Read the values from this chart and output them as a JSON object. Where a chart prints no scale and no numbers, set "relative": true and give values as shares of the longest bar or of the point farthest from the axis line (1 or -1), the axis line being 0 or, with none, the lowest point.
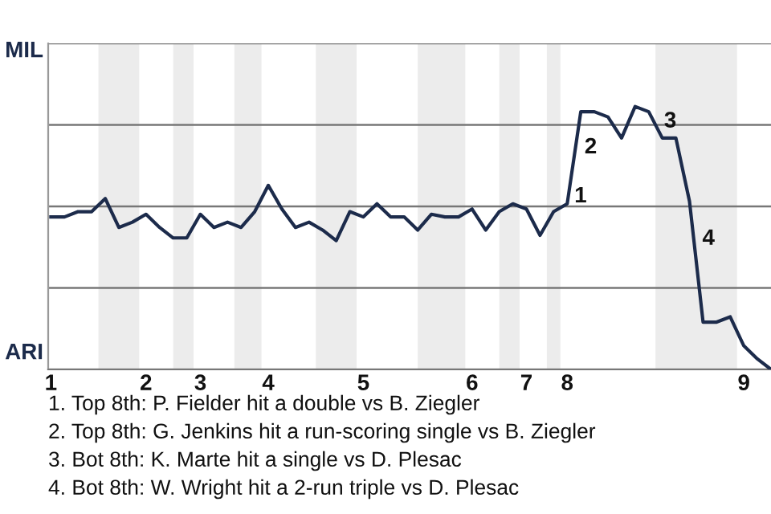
{
  "chart_data": {
    "type": "line",
    "relative": true,
    "categories": [
      "1",
      null,
      null,
      null,
      null,
      null,
      null,
      "2",
      null,
      null,
      null,
      "3",
      null,
      null,
      null,
      null,
      "4",
      null,
      null,
      null,
      null,
      null,
      null,
      "5",
      null,
      null,
      null,
      null,
      null,
      null,
      null,
      "6",
      null,
      null,
      null,
      "7",
      null,
      null,
      "8",
      null,
      null,
      null,
      null,
      null,
      null,
      null,
      null,
      null,
      null,
      null,
      null,
      "9",
      null,
      null
    ],
    "series": [
      {
        "color": "#1c2b4b",
        "values": [
          0.58,
          0.58,
          0.6,
          0.6,
          0.65,
          0.54,
          0.56,
          0.59,
          0.54,
          0.5,
          0.5,
          0.59,
          0.54,
          0.56,
          0.54,
          0.6,
          0.7,
          0.61,
          0.54,
          0.56,
          0.53,
          0.49,
          0.6,
          0.58,
          0.63,
          0.58,
          0.58,
          0.53,
          0.59,
          0.58,
          0.58,
          0.61,
          0.53,
          0.6,
          0.63,
          0.61,
          0.51,
          0.6,
          0.63,
          0.98,
          0.98,
          0.96,
          0.88,
          1,
          0.98,
          0.88,
          0.88,
          0.64,
          0.18,
          0.18,
          0.2,
          0.09,
          0.04,
          0
        ]
      }
    ],
    "grid": "y",
    "marker": "none",
    "line_style": "solid",
    "annotations": [
      "MIL",
      "ARI",
      "1",
      "2",
      "3",
      "4",
      "1. Top 8th: P. Fielder hit a double vs B. Ziegler",
      "2. Top 8th: G. Jenkins hit a run-scoring single vs B. Ziegler",
      "3. Bot 8th: K. Marte hit a single vs D. Plesac",
      "4. Bot 8th: W. Wright hit a 2-run triple vs D. Plesac"
    ]
  }
}
